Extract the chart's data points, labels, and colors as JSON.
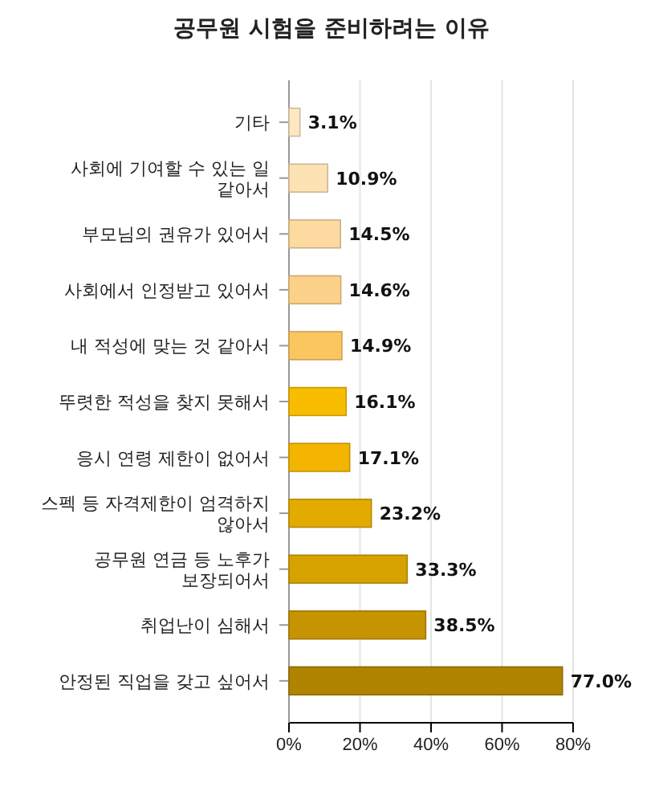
{
  "chart_data": {
    "type": "bar",
    "orientation": "horizontal",
    "title": "공무원 시험을 준비하려는 이유",
    "categories": [
      "기타",
      "사회에 기여할 수 있는 일 같아서",
      "부모님의 권유가 있어서",
      "사회에서 인정받고 있어서",
      "내 적성에 맞는 것 같아서",
      "뚜렷한 적성을 찾지 못해서",
      "응시 연령 제한이 없어서",
      "스펙 등 자격제한이 엄격하지 않아서",
      "공무원 연금 등 노후가 보장되어서",
      "취업난이 심해서",
      "안정된 직업을 갖고 싶어서"
    ],
    "values": [
      3.1,
      10.9,
      14.5,
      14.6,
      14.9,
      16.1,
      17.1,
      23.2,
      33.3,
      38.5,
      77.0
    ],
    "value_labels": [
      "3.1%",
      "10.9%",
      "14.5%",
      "14.6%",
      "14.9%",
      "16.1%",
      "17.1%",
      "23.2%",
      "33.3%",
      "38.5%",
      "77.0%"
    ],
    "colors": [
      "#fde8c4",
      "#fde2b4",
      "#fcdaa0",
      "#fcd28a",
      "#fbc660",
      "#f9bd00",
      "#f3b500",
      "#e3aa00",
      "#d6a200",
      "#c69400",
      "#b08400"
    ],
    "xlim": [
      0,
      80
    ],
    "xticks": [
      {
        "value": 0,
        "label": "0%"
      },
      {
        "value": 20,
        "label": "20%"
      },
      {
        "value": 40,
        "label": "40%"
      },
      {
        "value": 60,
        "label": "60%"
      },
      {
        "value": 80,
        "label": "80%"
      }
    ],
    "grid": "x"
  }
}
